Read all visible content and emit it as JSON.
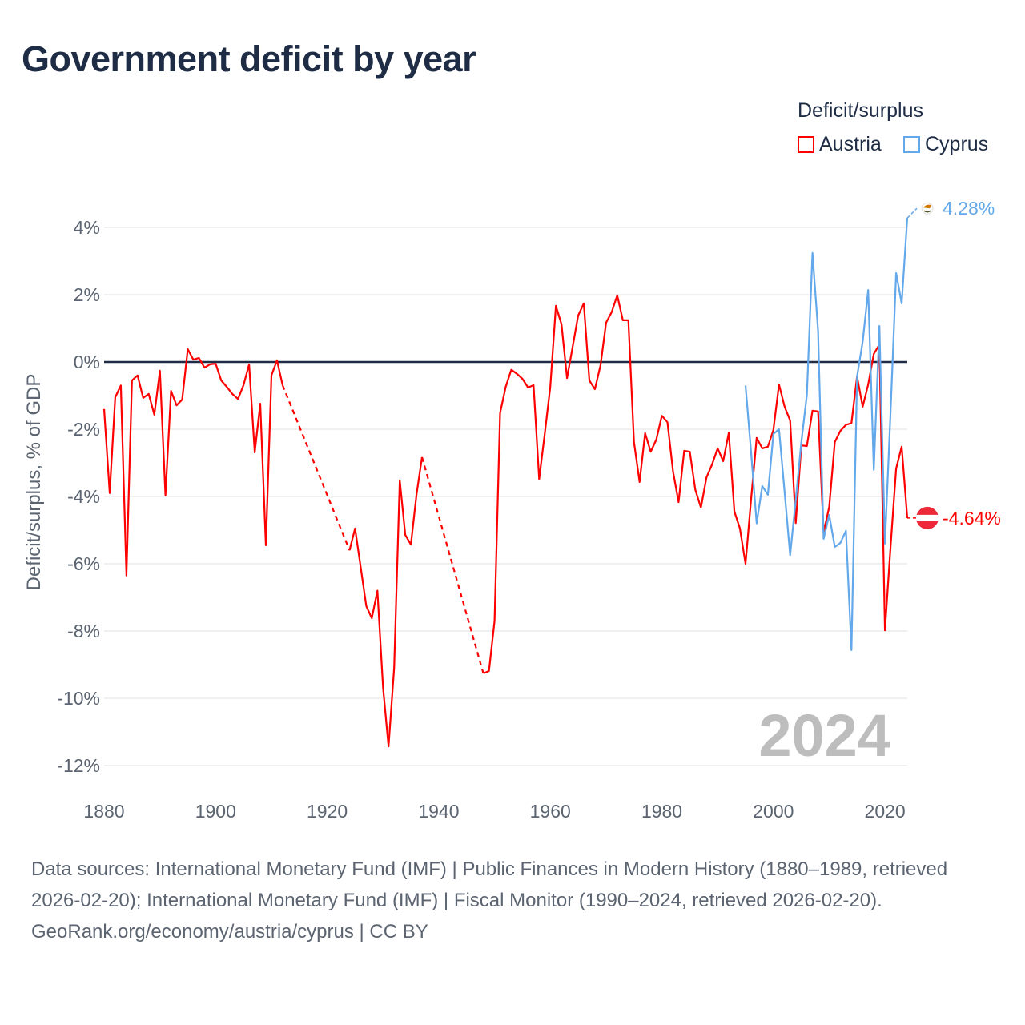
{
  "title": "Government deficit by year",
  "legend": {
    "title": "Deficit/surplus",
    "items": [
      {
        "label": "Austria",
        "color": "#ff0000"
      },
      {
        "label": "Cyprus",
        "color": "#62a8ea"
      }
    ]
  },
  "footer": {
    "line1": "Data sources: International Monetary Fund (IMF) | Public Finances in Modern History (1880–1989, retrieved 2026-02-20); International Monetary Fund (IMF) | Fiscal Monitor (1990–2024, retrieved 2026-02-20).",
    "line2": "GeoRank.org/economy/austria/cyprus | CC BY"
  },
  "chart_data": {
    "type": "line",
    "title": "Government deficit by year",
    "xlabel": "",
    "ylabel": "Deficit/surplus, % of GDP",
    "xlim": [
      1880,
      2024
    ],
    "ylim": [
      -12,
      4.28
    ],
    "xticks": [
      1880,
      1900,
      1920,
      1940,
      1960,
      1980,
      2000,
      2020
    ],
    "xtick_labels": [
      "1880",
      "1900",
      "1920",
      "1940",
      "1960",
      "1980",
      "2000",
      "2020"
    ],
    "yticks": [
      4,
      2,
      0,
      -2,
      -4,
      -6,
      -8,
      -10,
      -12
    ],
    "ytick_labels": [
      "4%",
      "2%",
      "0%",
      "-2%",
      "-4%",
      "-6%",
      "-8%",
      "-10%",
      "-12%"
    ],
    "current_year_label": "2024",
    "grid": true,
    "legend_position": "top-right",
    "series": [
      {
        "name": "Austria",
        "color": "#ff0000",
        "start_year": 1880,
        "end_label": "-4.64%",
        "values": [
          -1.4,
          -3.9,
          -1.05,
          -0.7,
          -6.35,
          -0.55,
          -0.4,
          -1.07,
          -0.95,
          -1.57,
          -0.26,
          -3.97,
          -0.86,
          -1.29,
          -1.12,
          0.38,
          0.07,
          0.12,
          -0.17,
          -0.07,
          -0.05,
          -0.55,
          -0.74,
          -0.95,
          -1.1,
          -0.69,
          -0.07,
          -2.69,
          -1.24,
          -5.45,
          -0.4,
          0.05,
          -0.69,
          null,
          null,
          null,
          null,
          null,
          null,
          null,
          null,
          null,
          null,
          null,
          -5.6,
          -4.95,
          -6.1,
          -7.26,
          -7.62,
          -6.8,
          -9.67,
          -11.43,
          -9.1,
          -3.52,
          -5.14,
          -5.43,
          -3.95,
          -2.83,
          null,
          null,
          null,
          null,
          null,
          null,
          null,
          null,
          null,
          null,
          -9.26,
          -9.19,
          -7.7,
          -1.52,
          -0.74,
          -0.23,
          -0.35,
          -0.5,
          -0.76,
          -0.69,
          -3.48,
          -2.13,
          -0.74,
          1.67,
          1.12,
          -0.48,
          0.45,
          1.38,
          1.74,
          -0.55,
          -0.81,
          -0.1,
          1.17,
          1.48,
          1.98,
          1.24,
          1.24,
          -2.38,
          -3.57,
          -2.12,
          -2.67,
          -2.31,
          -1.6,
          -1.79,
          -3.26,
          -4.17,
          -2.64,
          -2.67,
          -3.8,
          -4.33,
          -3.43,
          -3.05,
          -2.57,
          -2.95,
          -2.1,
          -4.45,
          -4.95,
          -6.0,
          -4.07,
          -2.26,
          -2.57,
          -2.52,
          -2.02,
          -0.67,
          -1.33,
          -1.74,
          -4.79,
          -2.48,
          -2.5,
          -1.45,
          -1.47,
          -5.07,
          -4.31,
          -2.38,
          -2.05,
          -1.87,
          -1.82,
          -0.43,
          -1.33,
          -0.67,
          0.24,
          0.52,
          -7.98,
          -5.5,
          -3.17,
          -2.52,
          -4.64
        ]
      },
      {
        "name": "Cyprus",
        "color": "#62a8ea",
        "start_year": 1995,
        "end_label": "4.28%",
        "values": [
          -0.7,
          -2.7,
          -4.8,
          -3.69,
          -3.95,
          -2.14,
          -2.0,
          -3.87,
          -5.74,
          -4.1,
          -2.38,
          -0.98,
          3.24,
          0.93,
          -5.26,
          -4.55,
          -5.5,
          -5.38,
          -5.02,
          -8.57,
          -0.43,
          0.6,
          2.14,
          -3.21,
          1.07,
          -5.4,
          -1.5,
          2.64,
          1.74,
          4.28
        ]
      }
    ]
  }
}
